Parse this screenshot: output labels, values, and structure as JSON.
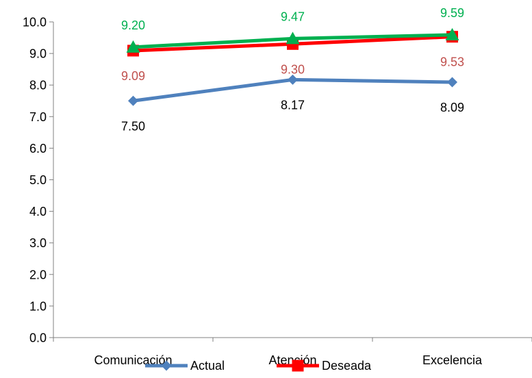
{
  "chart_data": {
    "type": "line",
    "categories": [
      "Comunicación",
      "Atención",
      "Excelencia"
    ],
    "ylim": [
      0,
      10
    ],
    "yticks": [
      "0.0",
      "1.0",
      "2.0",
      "3.0",
      "4.0",
      "5.0",
      "6.0",
      "7.0",
      "8.0",
      "9.0",
      "10.0"
    ],
    "grid": false,
    "legend_position": "bottom",
    "series": [
      {
        "name": "Actual",
        "values": [
          7.5,
          8.17,
          8.09
        ],
        "labels": [
          "7.50",
          "8.17",
          "8.09"
        ],
        "color": "#4F81BD",
        "label_color": "#000000",
        "marker": "diamond",
        "label_pos": "below",
        "in_legend": true
      },
      {
        "name": "Deseada",
        "values": [
          9.09,
          9.3,
          9.53
        ],
        "labels": [
          "9.09",
          "9.30",
          "9.53"
        ],
        "color": "#FF0000",
        "label_color": "#C0504D",
        "marker": "square",
        "label_pos": "below",
        "in_legend": true
      },
      {
        "name": "",
        "values": [
          9.2,
          9.47,
          9.59
        ],
        "labels": [
          "9.20",
          "9.47",
          "9.59"
        ],
        "color": "#00B050",
        "label_color": "#00B050",
        "marker": "triangle",
        "label_pos": "above",
        "in_legend": false
      }
    ]
  }
}
